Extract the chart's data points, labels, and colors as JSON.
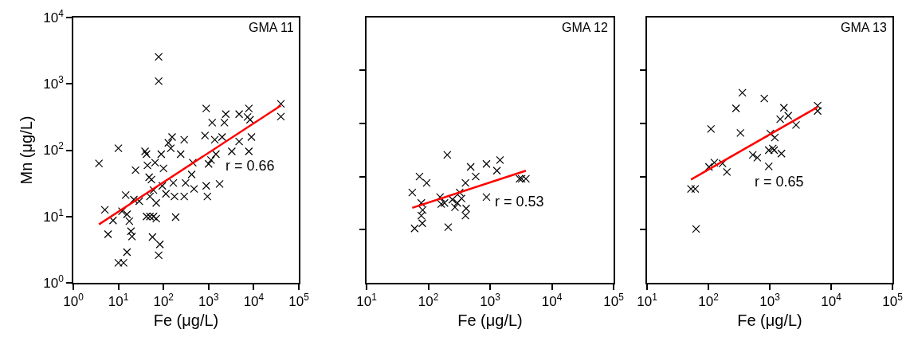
{
  "chart_data": [
    {
      "type": "scatter",
      "title": "GMA 11",
      "xlabel": "Fe (μg/L)",
      "ylabel": "Mn (μg/L)",
      "log": "xy",
      "marker": "cross",
      "grid": false,
      "xlim": [
        1,
        100000
      ],
      "xticks": [
        {
          "value": 1,
          "label": "10$^{0}$"
        },
        {
          "value": 10,
          "label": "10$^{1}$"
        },
        {
          "value": 100,
          "label": "10$^{2}$"
        },
        {
          "value": 1000,
          "label": "10$^{3}$"
        },
        {
          "value": 10000,
          "label": "10$^{4}$"
        },
        {
          "value": 100000,
          "label": "10$^{5}$"
        }
      ],
      "ylim": [
        1,
        10000
      ],
      "yticks": [
        {
          "value": 1,
          "label": "10$^{0}$"
        },
        {
          "value": 10,
          "label": "10$^{1}$"
        },
        {
          "value": 100,
          "label": "10$^{2}$"
        },
        {
          "value": 1000,
          "label": "10$^{3}$"
        },
        {
          "value": 10000,
          "label": "10$^{4}$"
        }
      ],
      "annotations": [
        "r = 0.66"
      ],
      "series": [
        {
          "color": "#000000",
          "x": [
            3.7,
            10,
            5,
            5.9,
            7.6,
            10,
            13,
            12,
            15.5,
            14.5,
            15.5,
            19,
            20,
            17.5,
            24,
            22,
            29,
            42,
            44,
            42,
            50,
            60,
            54,
            60,
            50,
            57,
            69,
            83,
            78,
            78,
            78,
            65,
            69,
            89,
            94,
            100,
            113,
            128,
            145,
            155,
            175,
            186,
            165,
            240,
            288,
            288,
            308,
            420,
            445,
            475,
            830,
            885,
            885,
            940,
            1000,
            1130,
            1200,
            1370,
            1450,
            1750,
            1990,
            2240,
            2400,
            3270,
            4750,
            4750,
            7300,
            7800,
            8300,
            8900,
            7800,
            39,
            48,
            40000,
            40000
          ],
          "values": [
            63,
            107,
            12.6,
            5.4,
            8.7,
            2,
            2,
            12,
            10.8,
            21,
            2.9,
            6,
            5,
            8.5,
            50,
            18,
            17,
            87,
            59,
            10,
            10,
            10,
            36,
            25,
            20,
            4.9,
            9.3,
            3.8,
            2.6,
            2550,
            1100,
            65,
            16,
            87,
            29,
            53,
            22,
            129,
            107,
            158,
            20,
            9.8,
            32,
            87,
            144,
            20,
            32,
            43,
            65,
            26,
            166,
            425,
            29,
            20,
            62,
            71,
            260,
            144,
            87,
            31,
            158,
            260,
            350,
            96,
            135,
            350,
            316,
            425,
            288,
            158,
            96,
            96,
            39,
            500,
            320
          ]
        },
        {
          "type": "line",
          "color": "#ff0000",
          "marker": "none",
          "x": [
            3.7,
            40000
          ],
          "values": [
            7.6,
            470
          ]
        }
      ]
    },
    {
      "type": "scatter",
      "title": "GMA 12",
      "xlabel": "Fe (μg/L)",
      "log": "xy",
      "marker": "cross",
      "grid": false,
      "tick_labels": "x",
      "xlim": [
        10,
        100000
      ],
      "xticks": [
        {
          "value": 10,
          "label": "10$^{1}$"
        },
        {
          "value": 100,
          "label": "10$^{2}$"
        },
        {
          "value": 1000,
          "label": "10$^{3}$"
        },
        {
          "value": 10000,
          "label": "10$^{4}$"
        },
        {
          "value": 100000,
          "label": "10$^{5}$"
        }
      ],
      "ylim": [
        1,
        10000
      ],
      "yticks": [
        {
          "value": 6.3,
          "label": null
        },
        {
          "value": 40,
          "label": null
        },
        {
          "value": 250,
          "label": null
        },
        {
          "value": 1600,
          "label": null
        }
      ],
      "annotations": [
        "r = 0.53"
      ],
      "series": [
        {
          "color": "#000000",
          "x": [
            55,
            60,
            72,
            77,
            81,
            77,
            80,
            94,
            155,
            162,
            183,
            203,
            210,
            245,
            270,
            295,
            322,
            345,
            400,
            410,
            400,
            485,
            585,
            875,
            875,
            1290,
            1450,
            3000,
            3240,
            3800
          ],
          "values": [
            23,
            6.6,
            40,
            16,
            12.5,
            10.3,
            7.9,
            32,
            19.6,
            15.4,
            16,
            85,
            6.9,
            18,
            13.8,
            16,
            23,
            18.7,
            32,
            13.2,
            10.3,
            56,
            40,
            62,
            19.6,
            49,
            71,
            37,
            37,
            37
          ]
        },
        {
          "type": "line",
          "color": "#ff0000",
          "marker": "none",
          "x": [
            55,
            3800
          ],
          "values": [
            13.5,
            49
          ]
        }
      ]
    },
    {
      "type": "scatter",
      "title": "GMA 13",
      "xlabel": "Fe (μg/L)",
      "log": "xy",
      "marker": "cross",
      "grid": false,
      "tick_labels": "x",
      "xlim": [
        10,
        100000
      ],
      "xticks": [
        {
          "value": 10,
          "label": "10$^{1}$"
        },
        {
          "value": 100,
          "label": "10$^{2}$"
        },
        {
          "value": 1000,
          "label": "10$^{3}$"
        },
        {
          "value": 10000,
          "label": "10$^{4}$"
        },
        {
          "value": 100000,
          "label": "10$^{5}$"
        }
      ],
      "ylim": [
        1,
        10000
      ],
      "yticks": [
        {
          "value": 6.3,
          "label": null
        },
        {
          "value": 40,
          "label": null
        },
        {
          "value": 250,
          "label": null
        },
        {
          "value": 1600,
          "label": null
        }
      ],
      "annotations": [
        "r = 0.65"
      ],
      "series": [
        {
          "color": "#000000",
          "x": [
            52,
            61,
            63,
            110,
            102,
            125,
            170,
            200,
            282,
            333,
            358,
            529,
            627,
            815,
            963,
            963,
            1020,
            1120,
            1210,
            1180,
            1480,
            1550,
            1700,
            2000,
            2680,
            6030,
            6030
          ],
          "values": [
            26,
            26,
            6.5,
            209,
            56,
            65,
            63,
            47,
            427,
            182,
            735,
            85,
            77,
            602,
            57,
            100,
            178,
            106,
            155,
            100,
            293,
            89,
            436,
            331,
            240,
            468,
            390
          ]
        },
        {
          "type": "line",
          "color": "#ff0000",
          "marker": "none",
          "x": [
            52,
            6030
          ],
          "values": [
            36,
            447
          ]
        }
      ]
    }
  ]
}
